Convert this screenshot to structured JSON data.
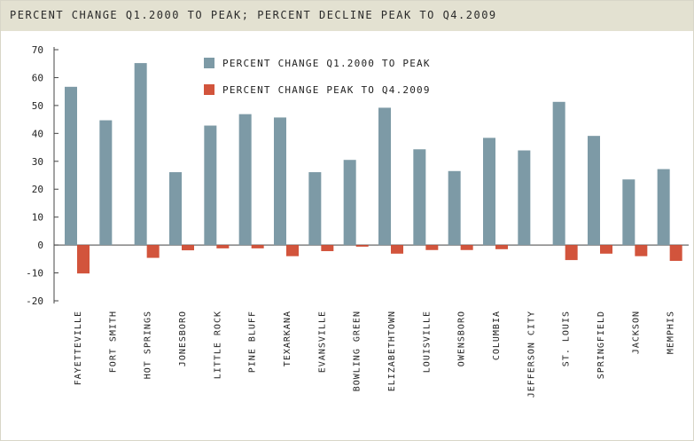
{
  "colors": {
    "series1": "#7d9aa6",
    "series2": "#d2543c",
    "title_bar": "#e3e1d1",
    "grid": "#c8c8c8"
  },
  "chart_data": {
    "type": "bar",
    "title": "PERCENT CHANGE Q1.2000 TO PEAK; PERCENT DECLINE PEAK TO Q4.2009",
    "xlabel": "",
    "ylabel": "",
    "ylim": [
      -20,
      70
    ],
    "yticks": [
      70,
      60,
      50,
      40,
      30,
      20,
      10,
      0,
      -10,
      -20
    ],
    "grid": false,
    "legend_placement": "top-left-inside",
    "categories": [
      "FAYETTEVILLE",
      "FORT SMITH",
      "HOT SPRINGS",
      "JONESBORO",
      "LITTLE ROCK",
      "PINE BLUFF",
      "TEXARKANA",
      "EVANSVILLE",
      "BOWLING GREEN",
      "ELIZABETHTOWN",
      "LOUISVILLE",
      "OWENSBORO",
      "COLUMBIA",
      "JEFFERSON CITY",
      "ST. LOUIS",
      "SPRINGFIELD",
      "JACKSON",
      "MEMPHIS"
    ],
    "series": [
      {
        "name": "PERCENT CHANGE Q1.2000 TO PEAK",
        "values": [
          56.7,
          44.7,
          65.2,
          26.1,
          42.8,
          46.9,
          45.7,
          26.1,
          30.5,
          49.2,
          34.3,
          26.5,
          38.4,
          33.9,
          51.3,
          39.1,
          23.5,
          27.2
        ]
      },
      {
        "name": "PERCENT CHANGE PEAK TO Q4.2009",
        "values": [
          -10.2,
          0,
          -4.6,
          -1.9,
          -1.2,
          -1.2,
          -4.0,
          -2.2,
          -0.6,
          -3.1,
          -1.8,
          -1.8,
          -1.5,
          0,
          -5.4,
          -3.1,
          -4.0,
          -5.7
        ]
      }
    ]
  }
}
